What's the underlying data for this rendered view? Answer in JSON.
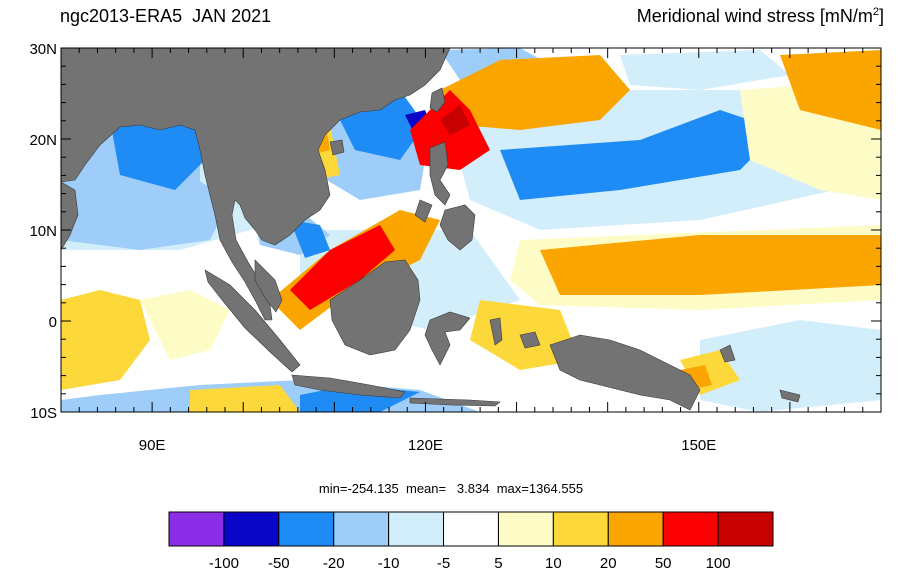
{
  "header": {
    "left_title": "ngc2013-ERA5  JAN 2021",
    "right_title_main": "Meridional wind stress [mN/m",
    "right_title_sup": "2",
    "right_title_end": "]"
  },
  "axes": {
    "lat_labels": [
      "30N",
      "20N",
      "10N",
      "0",
      "10S"
    ],
    "lat_values": [
      30,
      20,
      10,
      0,
      -10
    ],
    "lon_labels": [
      "90E",
      "120E",
      "150E"
    ],
    "lon_values": [
      90,
      120,
      150
    ],
    "lon_range": [
      80,
      170
    ],
    "lat_range": [
      -10,
      30
    ]
  },
  "stats": {
    "text": "min=-254.135  mean=   3.834  max=1364.555"
  },
  "colorbar": {
    "colors": [
      "#8c2ee8",
      "#0a06c8",
      "#1f8bf5",
      "#9dcdf8",
      "#d3eefb",
      "#ffffff",
      "#fdfbc6",
      "#fcd83a",
      "#fba500",
      "#fb0000",
      "#c70000"
    ],
    "labels": [
      "-100",
      "-50",
      "-20",
      "-10",
      "-5",
      "5",
      "10",
      "20",
      "50",
      "100"
    ]
  },
  "palette": {
    "land": "#737373",
    "frame": "#000000"
  }
}
